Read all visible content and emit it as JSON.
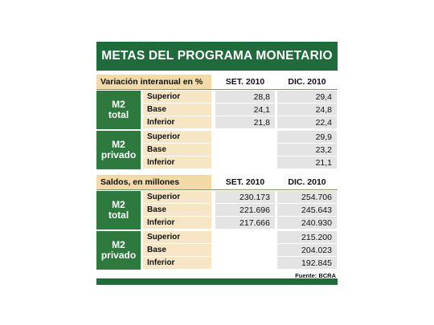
{
  "title": "METAS DEL PROGRAMA MONETARIO",
  "sections": [
    {
      "header": "Variación interanual en %",
      "columns": [
        "SET. 2010",
        "DIC. 2010"
      ],
      "groups": [
        {
          "label": [
            "M2",
            "total"
          ],
          "rows": [
            {
              "name": "Superior",
              "values": [
                "28,8",
                "29,4"
              ]
            },
            {
              "name": "Base",
              "values": [
                "24,1",
                "24,8"
              ]
            },
            {
              "name": "Inferior",
              "values": [
                "21,8",
                "22,4"
              ]
            }
          ]
        },
        {
          "label": [
            "M2",
            "privado"
          ],
          "rows": [
            {
              "name": "Superior",
              "values": [
                null,
                "29,9"
              ]
            },
            {
              "name": "Base",
              "values": [
                null,
                "23,2"
              ]
            },
            {
              "name": "Inferior",
              "values": [
                null,
                "21,1"
              ]
            }
          ]
        }
      ]
    },
    {
      "header": "Saldos, en millones",
      "columns": [
        "SET. 2010",
        "DIC. 2010"
      ],
      "groups": [
        {
          "label": [
            "M2",
            "total"
          ],
          "rows": [
            {
              "name": "Superior",
              "values": [
                "230.173",
                "254.706"
              ]
            },
            {
              "name": "Base",
              "values": [
                "221.696",
                "245.643"
              ]
            },
            {
              "name": "Inferior",
              "values": [
                "217.666",
                "240.930"
              ]
            }
          ]
        },
        {
          "label": [
            "M2",
            "privado"
          ],
          "rows": [
            {
              "name": "Superior",
              "values": [
                null,
                "215.200"
              ]
            },
            {
              "name": "Base",
              "values": [
                null,
                "204.023"
              ]
            },
            {
              "name": "Inferior",
              "values": [
                null,
                "192.845"
              ]
            }
          ]
        }
      ]
    }
  ],
  "source": "Fuente: BCRA"
}
